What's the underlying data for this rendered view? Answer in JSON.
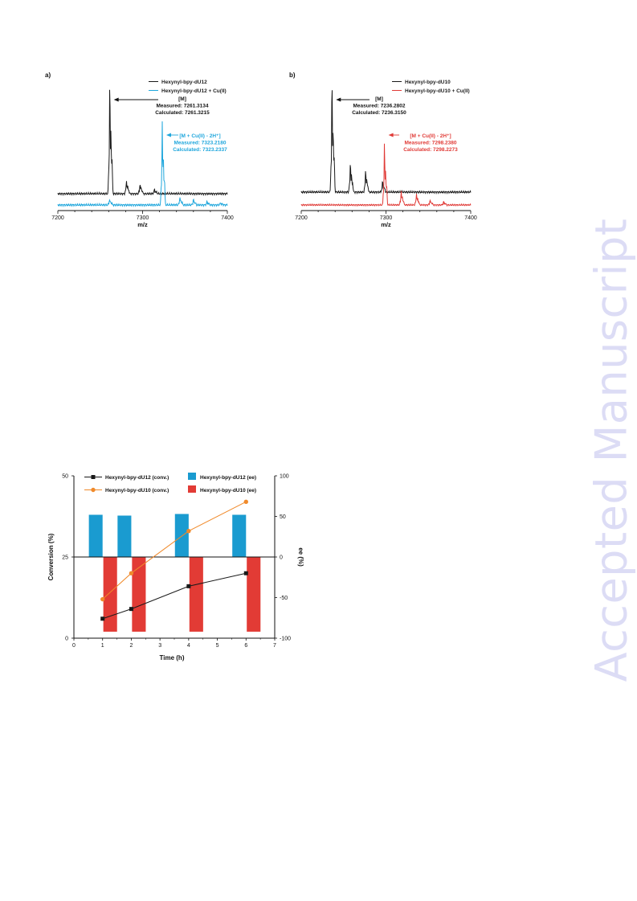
{
  "watermark": "Accepted Manuscript",
  "colors": {
    "black": "#1a1a1a",
    "blue": "#1ea6dc",
    "red": "#e03a36",
    "orange": "#f08a2b",
    "bar_blue": "#1a9bd0",
    "bar_red": "#e23b35"
  },
  "chart_data": [
    {
      "type": "line",
      "panel_label": "a)",
      "xlabel": "m/z",
      "ylabel": "",
      "xlim": [
        7200,
        7400
      ],
      "x_ticks": [
        "7200",
        "7300",
        "7400"
      ],
      "legend": [
        "Hexynyl-bpy-dU12",
        "Hexynyl-bpy-dU12 + Cu(II)"
      ],
      "annotations": [
        {
          "lines": [
            "[M]",
            "Measured: 7261.3134",
            "Calculated: 7261.3215"
          ],
          "series": "Hexynyl-bpy-dU12"
        },
        {
          "lines": [
            "[M + Cu(II) - 2H⁺]",
            "Measured: 7323.2180",
            "Calculated: 7323.2337"
          ],
          "series": "Hexynyl-bpy-dU12 + Cu(II)"
        }
      ],
      "series": [
        {
          "name": "Hexynyl-bpy-dU12",
          "peaks": [
            [
              7261.3,
              1.0
            ],
            [
              7281,
              0.12
            ],
            [
              7297,
              0.09
            ],
            [
              7314,
              0.04
            ]
          ]
        },
        {
          "name": "Hexynyl-bpy-dU12 + Cu(II)",
          "peaks": [
            [
              7261,
              0.05
            ],
            [
              7323.2,
              0.73
            ],
            [
              7344,
              0.07
            ],
            [
              7360,
              0.05
            ],
            [
              7376,
              0.03
            ],
            [
              7392,
              0.02
            ]
          ]
        }
      ]
    },
    {
      "type": "line",
      "panel_label": "b)",
      "xlabel": "m/z",
      "ylabel": "",
      "xlim": [
        7200,
        7400
      ],
      "x_ticks": [
        "7200",
        "7300",
        "7400"
      ],
      "legend": [
        "Hexynyl-bpy-dU10",
        "Hexynyl-bpy-dU10 + Cu(II)"
      ],
      "annotations": [
        {
          "lines": [
            "[M]",
            "Measured: 7236.2802",
            "Calculated: 7236.3150"
          ],
          "series": "Hexynyl-bpy-dU10"
        },
        {
          "lines": [
            "[M + Cu(II) - 2H⁺]",
            "Measured: 7298.2380",
            "Calculated: 7298.2273"
          ],
          "series": "Hexynyl-bpy-dU10 + Cu(II)"
        }
      ],
      "series": [
        {
          "name": "Hexynyl-bpy-dU10",
          "peaks": [
            [
              7236.3,
              1.0
            ],
            [
              7258,
              0.27
            ],
            [
              7276,
              0.2
            ],
            [
              7296,
              0.1
            ]
          ]
        },
        {
          "name": "Hexynyl-bpy-dU10 + Cu(II)",
          "peaks": [
            [
              7298.2,
              0.74
            ],
            [
              7318,
              0.17
            ],
            [
              7336,
              0.14
            ],
            [
              7352,
              0.06
            ],
            [
              7368,
              0.04
            ]
          ]
        }
      ]
    },
    {
      "type": "bar",
      "xlabel": "Time (h)",
      "ylabel": "Conversion (%)",
      "ylabel_right": "ee (%)",
      "xlim": [
        0,
        7
      ],
      "ylim": [
        0,
        50
      ],
      "ylim_right": [
        -100,
        100
      ],
      "x_ticks": [
        "0",
        "1",
        "2",
        "3",
        "4",
        "5",
        "6",
        "7"
      ],
      "y_ticks": [
        "0",
        "25",
        "50"
      ],
      "y_ticks_right": [
        "-100",
        "-50",
        "0",
        "50",
        "100"
      ],
      "legend_position": "top",
      "series": [
        {
          "name": "Hexynyl-bpy-dU12 (conv.)",
          "type": "line",
          "axis": "left",
          "x": [
            1,
            2,
            4,
            6
          ],
          "values": [
            6,
            9,
            16,
            20
          ]
        },
        {
          "name": "Hexynyl-bpy-dU10 (conv.)",
          "type": "line",
          "axis": "left",
          "x": [
            1,
            2,
            4,
            6
          ],
          "values": [
            12,
            20,
            33,
            42
          ]
        },
        {
          "name": "Hexynyl-bpy-dU12 (ee)",
          "type": "bar",
          "axis": "right",
          "x": [
            1,
            2,
            4,
            6
          ],
          "values": [
            52,
            51,
            53,
            52
          ]
        },
        {
          "name": "Hexynyl-bpy-dU10 (ee)",
          "type": "bar",
          "axis": "right",
          "x": [
            1,
            2,
            4,
            6
          ],
          "values": [
            -92,
            -92,
            -92,
            -92
          ]
        }
      ]
    }
  ]
}
